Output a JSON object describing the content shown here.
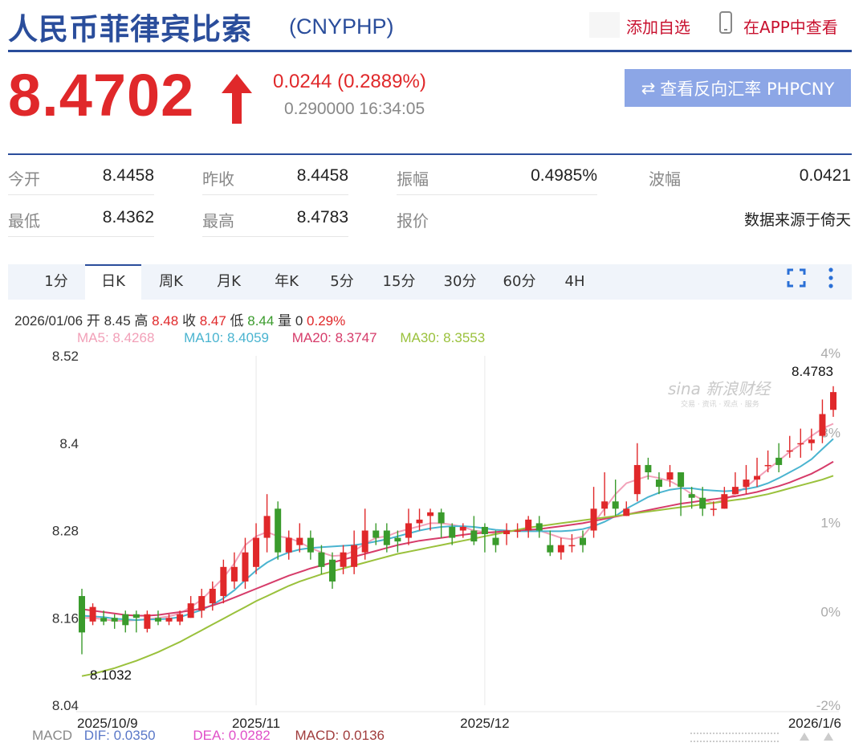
{
  "header": {
    "title": "人民币菲律宾比索",
    "code": "(CNYPHP)",
    "add_fav": "添加自选",
    "app_link": "在APP中查看"
  },
  "quote": {
    "price": "8.4702",
    "direction": "up",
    "change": "0.0244 (0.2889%)",
    "subline": "0.290000 16:34:05",
    "reverse_button": "查看反向汇率 PHPCNY",
    "colors": {
      "up": "#e0282a",
      "down": "#3a9b2c",
      "brand": "#2a4d9b"
    }
  },
  "stats": [
    {
      "label": "今开",
      "value": "8.4458"
    },
    {
      "label": "昨收",
      "value": "8.4458"
    },
    {
      "label": "振幅",
      "value": "0.4985%"
    },
    {
      "label": "波幅",
      "value": "0.0421"
    },
    {
      "label": "最低",
      "value": "8.4362"
    },
    {
      "label": "最高",
      "value": "8.4783"
    },
    {
      "label": "报价",
      "value": ""
    },
    {
      "label": "",
      "value": "数据来源于倚天"
    }
  ],
  "tabs": [
    "1分",
    "日K",
    "周K",
    "月K",
    "年K",
    "5分",
    "15分",
    "30分",
    "60分",
    "4H"
  ],
  "active_tab": "日K",
  "ohlc": {
    "date": "2026/01/06",
    "open_label": "开",
    "open": "8.45",
    "high_label": "高",
    "high": "8.48",
    "close_label": "收",
    "close": "8.47",
    "low_label": "低",
    "low": "8.44",
    "vol_label": "量",
    "vol": "0",
    "pct": "0.29%"
  },
  "ma": [
    {
      "text": "MA5: 8.4268",
      "color": "#f2a0b8"
    },
    {
      "text": "MA10: 8.4059",
      "color": "#4ab4d0"
    },
    {
      "text": "MA20: 8.3747",
      "color": "#d63c6a"
    },
    {
      "text": "MA30: 8.3553",
      "color": "#9ac13c"
    }
  ],
  "macd": {
    "label": "MACD",
    "dif": "DIF: 0.0350",
    "dea": "DEA: 0.0282",
    "macd": "MACD: 0.0136",
    "dif_color": "#5a78c8",
    "dea_color": "#e050c8",
    "macd_color": "#a03c3c"
  },
  "chart_data": {
    "type": "candlestick",
    "ylim": [
      8.04,
      8.52
    ],
    "y_ticks": [
      "8.52",
      "8.4",
      "8.28",
      "8.16",
      "8.04"
    ],
    "pct_ticks": [
      {
        "label": "4%",
        "value": 8.5237
      },
      {
        "label": "3%",
        "value": 8.4147
      },
      {
        "label": "1%",
        "value": 8.2909
      },
      {
        "label": "0%",
        "value": 8.1688
      },
      {
        "label": "-2%",
        "value": 8.04
      }
    ],
    "x_labels": [
      {
        "label": "2025/10/9",
        "index": 0
      },
      {
        "label": "2025/11",
        "index": 16
      },
      {
        "label": "2025/12",
        "index": 37
      },
      {
        "label": "2026/1/6",
        "index": 62
      }
    ],
    "watermark": "sina 新浪财经",
    "watermark_sub": "交易 · 资讯 · 观点 · 服务",
    "max_label": "8.4783",
    "min_label": "8.1032",
    "candles": [
      [
        8.19,
        8.14,
        8.2,
        8.11
      ],
      [
        8.155,
        8.175,
        8.18,
        8.15
      ],
      [
        8.16,
        8.155,
        8.17,
        8.15
      ],
      [
        8.16,
        8.155,
        8.165,
        8.145
      ],
      [
        8.165,
        8.15,
        8.17,
        8.14
      ],
      [
        8.165,
        8.16,
        8.17,
        8.14
      ],
      [
        8.145,
        8.165,
        8.17,
        8.14
      ],
      [
        8.16,
        8.155,
        8.17,
        8.15
      ],
      [
        8.155,
        8.16,
        8.165,
        8.15
      ],
      [
        8.155,
        8.165,
        8.17,
        8.15
      ],
      [
        8.16,
        8.18,
        8.19,
        8.16
      ],
      [
        8.17,
        8.19,
        8.2,
        8.16
      ],
      [
        8.18,
        8.2,
        8.21,
        8.17
      ],
      [
        8.19,
        8.23,
        8.24,
        8.18
      ],
      [
        8.21,
        8.23,
        8.25,
        8.2
      ],
      [
        8.21,
        8.25,
        8.27,
        8.2
      ],
      [
        8.23,
        8.27,
        8.29,
        8.22
      ],
      [
        8.27,
        8.3,
        8.33,
        8.25
      ],
      [
        8.31,
        8.25,
        8.32,
        8.24
      ],
      [
        8.25,
        8.27,
        8.28,
        8.24
      ],
      [
        8.26,
        8.27,
        8.29,
        8.25
      ],
      [
        8.27,
        8.25,
        8.28,
        8.24
      ],
      [
        8.25,
        8.23,
        8.26,
        8.22
      ],
      [
        8.24,
        8.21,
        8.25,
        8.2
      ],
      [
        8.23,
        8.25,
        8.26,
        8.22
      ],
      [
        8.23,
        8.26,
        8.28,
        8.22
      ],
      [
        8.25,
        8.28,
        8.31,
        8.24
      ],
      [
        8.28,
        8.27,
        8.29,
        8.26
      ],
      [
        8.28,
        8.26,
        8.29,
        8.25
      ],
      [
        8.27,
        8.265,
        8.28,
        8.25
      ],
      [
        8.27,
        8.29,
        8.31,
        8.26
      ],
      [
        8.29,
        8.295,
        8.31,
        8.28
      ],
      [
        8.3,
        8.305,
        8.31,
        8.28
      ],
      [
        8.305,
        8.29,
        8.31,
        8.27
      ],
      [
        8.285,
        8.27,
        8.29,
        8.26
      ],
      [
        8.28,
        8.285,
        8.29,
        8.27
      ],
      [
        8.28,
        8.265,
        8.3,
        8.26
      ],
      [
        8.285,
        8.275,
        8.29,
        8.25
      ],
      [
        8.27,
        8.26,
        8.28,
        8.25
      ],
      [
        8.275,
        8.28,
        8.29,
        8.26
      ],
      [
        8.28,
        8.28,
        8.29,
        8.27
      ],
      [
        8.28,
        8.295,
        8.3,
        8.27
      ],
      [
        8.29,
        8.28,
        8.3,
        8.27
      ],
      [
        8.26,
        8.25,
        8.28,
        8.245
      ],
      [
        8.25,
        8.26,
        8.27,
        8.24
      ],
      [
        8.26,
        8.26,
        8.275,
        8.25
      ],
      [
        8.27,
        8.26,
        8.28,
        8.25
      ],
      [
        8.28,
        8.31,
        8.34,
        8.27
      ],
      [
        8.31,
        8.32,
        8.36,
        8.3
      ],
      [
        8.32,
        8.31,
        8.35,
        8.3
      ],
      [
        8.3,
        8.31,
        8.32,
        8.3
      ],
      [
        8.33,
        8.37,
        8.4,
        8.32
      ],
      [
        8.37,
        8.36,
        8.38,
        8.35
      ],
      [
        8.35,
        8.34,
        8.36,
        8.33
      ],
      [
        8.35,
        8.36,
        8.37,
        8.34
      ],
      [
        8.36,
        8.34,
        8.36,
        8.3
      ],
      [
        8.33,
        8.325,
        8.34,
        8.31
      ],
      [
        8.325,
        8.31,
        8.34,
        8.3
      ],
      [
        8.31,
        8.31,
        8.32,
        8.3
      ],
      [
        8.31,
        8.33,
        8.34,
        8.31
      ],
      [
        8.33,
        8.34,
        8.36,
        8.33
      ],
      [
        8.34,
        8.35,
        8.37,
        8.33
      ],
      [
        8.35,
        8.355,
        8.38,
        8.34
      ],
      [
        8.37,
        8.37,
        8.39,
        8.36
      ],
      [
        8.38,
        8.37,
        8.4,
        8.36
      ],
      [
        8.39,
        8.39,
        8.41,
        8.38
      ],
      [
        8.4,
        8.4,
        8.42,
        8.38
      ],
      [
        8.4,
        8.405,
        8.42,
        8.39
      ],
      [
        8.41,
        8.44,
        8.46,
        8.4
      ],
      [
        8.4458,
        8.4702,
        8.4783,
        8.4362
      ]
    ],
    "series": [
      {
        "name": "MA5",
        "color": "#f2a0b8",
        "values": [
          8.16,
          8.16,
          8.158,
          8.156,
          8.156,
          8.157,
          8.158,
          8.16,
          8.162,
          8.166,
          8.175,
          8.185,
          8.2,
          8.215,
          8.235,
          8.26,
          8.272,
          8.278,
          8.272,
          8.27,
          8.264,
          8.256,
          8.25,
          8.245,
          8.246,
          8.252,
          8.262,
          8.27,
          8.272,
          8.278,
          8.282,
          8.286,
          8.29,
          8.29,
          8.288,
          8.285,
          8.28,
          8.278,
          8.276,
          8.278,
          8.28,
          8.282,
          8.28,
          8.275,
          8.27,
          8.268,
          8.272,
          8.29,
          8.31,
          8.33,
          8.345,
          8.35,
          8.355,
          8.352,
          8.348,
          8.34,
          8.33,
          8.322,
          8.318,
          8.322,
          8.33,
          8.34,
          8.352,
          8.364,
          8.376,
          8.388,
          8.398,
          8.41,
          8.42,
          8.4268
        ]
      },
      {
        "name": "MA10",
        "color": "#4ab4d0",
        "values": [
          8.163,
          8.162,
          8.161,
          8.159,
          8.158,
          8.157,
          8.158,
          8.158,
          8.159,
          8.161,
          8.166,
          8.171,
          8.178,
          8.187,
          8.198,
          8.212,
          8.225,
          8.236,
          8.244,
          8.25,
          8.254,
          8.256,
          8.257,
          8.258,
          8.259,
          8.26,
          8.262,
          8.265,
          8.268,
          8.272,
          8.276,
          8.28,
          8.283,
          8.285,
          8.286,
          8.286,
          8.285,
          8.283,
          8.281,
          8.28,
          8.279,
          8.279,
          8.279,
          8.279,
          8.279,
          8.28,
          8.282,
          8.286,
          8.292,
          8.3,
          8.31,
          8.318,
          8.326,
          8.332,
          8.336,
          8.338,
          8.338,
          8.336,
          8.335,
          8.334,
          8.335,
          8.337,
          8.34,
          8.345,
          8.352,
          8.36,
          8.368,
          8.378,
          8.392,
          8.4059
        ]
      },
      {
        "name": "MA20",
        "color": "#d63c6a",
        "values": [
          8.172,
          8.17,
          8.168,
          8.166,
          8.164,
          8.163,
          8.163,
          8.164,
          8.166,
          8.168,
          8.17,
          8.173,
          8.177,
          8.182,
          8.188,
          8.194,
          8.2,
          8.206,
          8.212,
          8.218,
          8.223,
          8.228,
          8.232,
          8.236,
          8.24,
          8.244,
          8.248,
          8.252,
          8.256,
          8.26,
          8.263,
          8.266,
          8.268,
          8.27,
          8.272,
          8.274,
          8.276,
          8.277,
          8.278,
          8.279,
          8.28,
          8.281,
          8.282,
          8.284,
          8.286,
          8.288,
          8.29,
          8.293,
          8.296,
          8.299,
          8.302,
          8.305,
          8.308,
          8.311,
          8.314,
          8.317,
          8.319,
          8.321,
          8.323,
          8.325,
          8.327,
          8.33,
          8.333,
          8.337,
          8.341,
          8.346,
          8.352,
          8.358,
          8.366,
          8.3747
        ]
      },
      {
        "name": "MA30",
        "color": "#9ac13c",
        "values": [
          8.08,
          8.083,
          8.087,
          8.091,
          8.096,
          8.101,
          8.107,
          8.113,
          8.12,
          8.127,
          8.135,
          8.143,
          8.151,
          8.159,
          8.167,
          8.175,
          8.183,
          8.19,
          8.197,
          8.204,
          8.21,
          8.215,
          8.22,
          8.224,
          8.228,
          8.232,
          8.236,
          8.24,
          8.244,
          8.248,
          8.251,
          8.254,
          8.257,
          8.26,
          8.263,
          8.266,
          8.269,
          8.272,
          8.275,
          8.278,
          8.281,
          8.284,
          8.286,
          8.288,
          8.29,
          8.292,
          8.294,
          8.296,
          8.298,
          8.3,
          8.302,
          8.304,
          8.306,
          8.308,
          8.31,
          8.312,
          8.314,
          8.316,
          8.318,
          8.32,
          8.322,
          8.324,
          8.327,
          8.33,
          8.334,
          8.338,
          8.342,
          8.346,
          8.35,
          8.3553
        ]
      }
    ]
  }
}
